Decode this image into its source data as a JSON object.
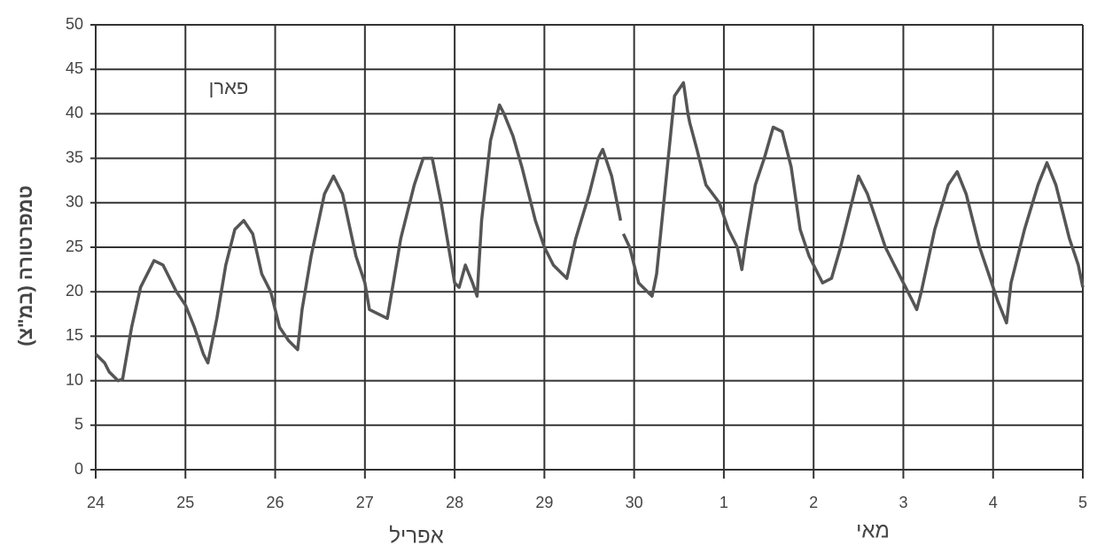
{
  "chart_data": {
    "type": "line",
    "y_label": "טמפרטורה (במ\"צ)",
    "annotation": "פארן",
    "month_labels": [
      "אפריל",
      "מאי"
    ],
    "x": [
      0,
      0.1,
      0.15,
      0.25,
      0.3,
      0.4,
      0.5,
      0.6,
      0.65,
      0.75,
      0.9,
      1.0,
      1.1,
      1.2,
      1.25,
      1.35,
      1.45,
      1.55,
      1.65,
      1.75,
      1.85,
      1.95,
      2.05,
      2.15,
      2.25,
      2.3,
      2.4,
      2.55,
      2.65,
      2.75,
      2.9,
      3.0,
      3.05,
      3.15,
      3.25,
      3.3,
      3.4,
      3.55,
      3.65,
      3.75,
      3.85,
      3.95,
      4.0,
      4.05,
      4.12,
      4.2,
      4.25,
      4.3,
      4.4,
      4.5,
      4.55,
      4.65,
      4.75,
      4.9,
      5.0,
      5.1,
      5.2,
      5.25,
      5.35,
      5.5,
      5.6,
      5.65,
      5.75,
      5.85,
      5.87,
      5.88,
      5.95,
      6.05,
      6.15,
      6.2,
      6.25,
      6.35,
      6.45,
      6.55,
      6.6,
      6.62,
      6.7,
      6.8,
      6.95,
      7.05,
      7.15,
      7.2,
      7.25,
      7.35,
      7.45,
      7.55,
      7.65,
      7.75,
      7.85,
      7.95,
      8.05,
      8.1,
      8.2,
      8.3,
      8.4,
      8.5,
      8.6,
      8.7,
      8.8,
      8.9,
      9.0,
      9.1,
      9.15,
      9.2,
      9.35,
      9.5,
      9.6,
      9.7,
      9.85,
      9.95,
      10.05,
      10.15,
      10.2,
      10.35,
      10.5,
      10.6,
      10.7,
      10.85,
      10.95,
      11
    ],
    "values": [
      13,
      12,
      11,
      10,
      10.2,
      16,
      20.5,
      22.5,
      23.5,
      23,
      20,
      18.5,
      16,
      13,
      12,
      17,
      23,
      27,
      28,
      26.5,
      22,
      20,
      16,
      14.5,
      13.5,
      18,
      24,
      31,
      33,
      31,
      24,
      21,
      18,
      17.5,
      17,
      20,
      26,
      32,
      35,
      35,
      30,
      24,
      21,
      20.5,
      23,
      21,
      19.5,
      28,
      37,
      41,
      40,
      37.5,
      34,
      28,
      25,
      23,
      22,
      21.5,
      26,
      31,
      35,
      36,
      33,
      28,
      null,
      26.5,
      25,
      21,
      20,
      19.5,
      22,
      32,
      42,
      43.5,
      40,
      39,
      36,
      32,
      30,
      27,
      25,
      22.5,
      26,
      32,
      35,
      38.5,
      38,
      34,
      27,
      24,
      22,
      21,
      21.5,
      25,
      29,
      33,
      31,
      28,
      25,
      23,
      21,
      19,
      18,
      20,
      27,
      32,
      33.5,
      31,
      25,
      22,
      19,
      16.5,
      21,
      27,
      32,
      34.5,
      32,
      26,
      23,
      20.5
    ],
    "color": "#555555",
    "xlim": [
      0,
      11
    ],
    "xticks": [
      {
        "value": 0,
        "label": "24"
      },
      {
        "value": 1,
        "label": "25"
      },
      {
        "value": 2,
        "label": "26"
      },
      {
        "value": 3,
        "label": "27"
      },
      {
        "value": 4,
        "label": "28"
      },
      {
        "value": 5,
        "label": "29"
      },
      {
        "value": 6,
        "label": "30"
      },
      {
        "value": 7,
        "label": "1"
      },
      {
        "value": 8,
        "label": "2"
      },
      {
        "value": 9,
        "label": "3"
      },
      {
        "value": 10,
        "label": "4"
      },
      {
        "value": 11,
        "label": "5"
      }
    ],
    "ylim": [
      0,
      50
    ],
    "yticks": [
      0,
      5,
      10,
      15,
      20,
      25,
      30,
      35,
      40,
      45,
      50
    ],
    "grid": true
  }
}
